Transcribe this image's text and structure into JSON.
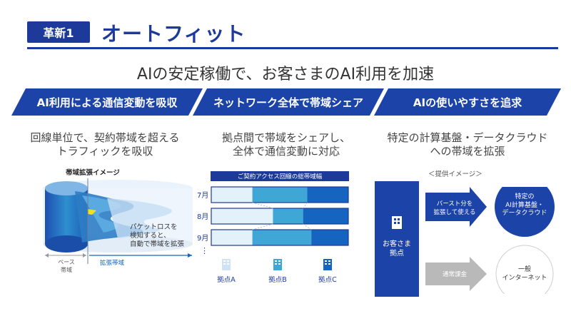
{
  "header": {
    "badge": "革新1",
    "title": "オートフィット",
    "subtitle": "AIの安定稼働で、お客さまのAI利用を加速"
  },
  "columns": [
    {
      "heading": "AI利用による通信変動を吸収",
      "desc_line1": "回線単位で、契約帯域を超える",
      "desc_line2": "トラフィックを吸収",
      "figure_label": "帯域拡張イメージ",
      "note_line1": "パケットロスを",
      "note_line2": "検知すると、",
      "note_line3": "自動で帯域を拡張",
      "base_line1": "ベース",
      "base_line2": "帯域",
      "expand_label": "拡張帯域"
    },
    {
      "heading": "ネットワーク全体で帯域シェア",
      "desc_line1": "拠点間で帯域をシェアし、",
      "desc_line2": "全体で通信変動に対応",
      "bar_header": "ご契約アクセス回線の総帯域幅",
      "months": [
        "7月",
        "8月",
        "9月"
      ],
      "ellipsis": "⋮",
      "sites": [
        "拠点A",
        "拠点B",
        "拠点C"
      ],
      "share": [
        {
          "month": "7月",
          "A": 0.3,
          "B": 0.4,
          "C": 0.3
        },
        {
          "month": "8月",
          "A": 0.45,
          "B": 0.22,
          "C": 0.33
        },
        {
          "month": "9月",
          "A": 0.3,
          "B": 0.43,
          "C": 0.27
        }
      ],
      "colors": {
        "A": "#e3f1fa",
        "B": "#3fa7d6",
        "C": "#1565c0"
      }
    },
    {
      "heading": "AIの使いやすさを追求",
      "desc_line1": "特定の計算基盤・データクラウド",
      "desc_line2": "への帯域を拡張",
      "image_label": "＜提供イメージ＞",
      "site_line1": "お客さま",
      "site_line2": "拠点",
      "burst_line1": "バースト分を",
      "burst_line2": "拡張して使える",
      "normal_label": "通常課金",
      "target1_line1": "特定の",
      "target1_line2": "AI計算基盤・",
      "target1_line3": "データクラウド",
      "target2_line1": "一般",
      "target2_line2": "インターネット"
    }
  ],
  "colors": {
    "brand": "#1d3a9a",
    "chevron": "#1c43a8",
    "dark": "#1565c0"
  }
}
